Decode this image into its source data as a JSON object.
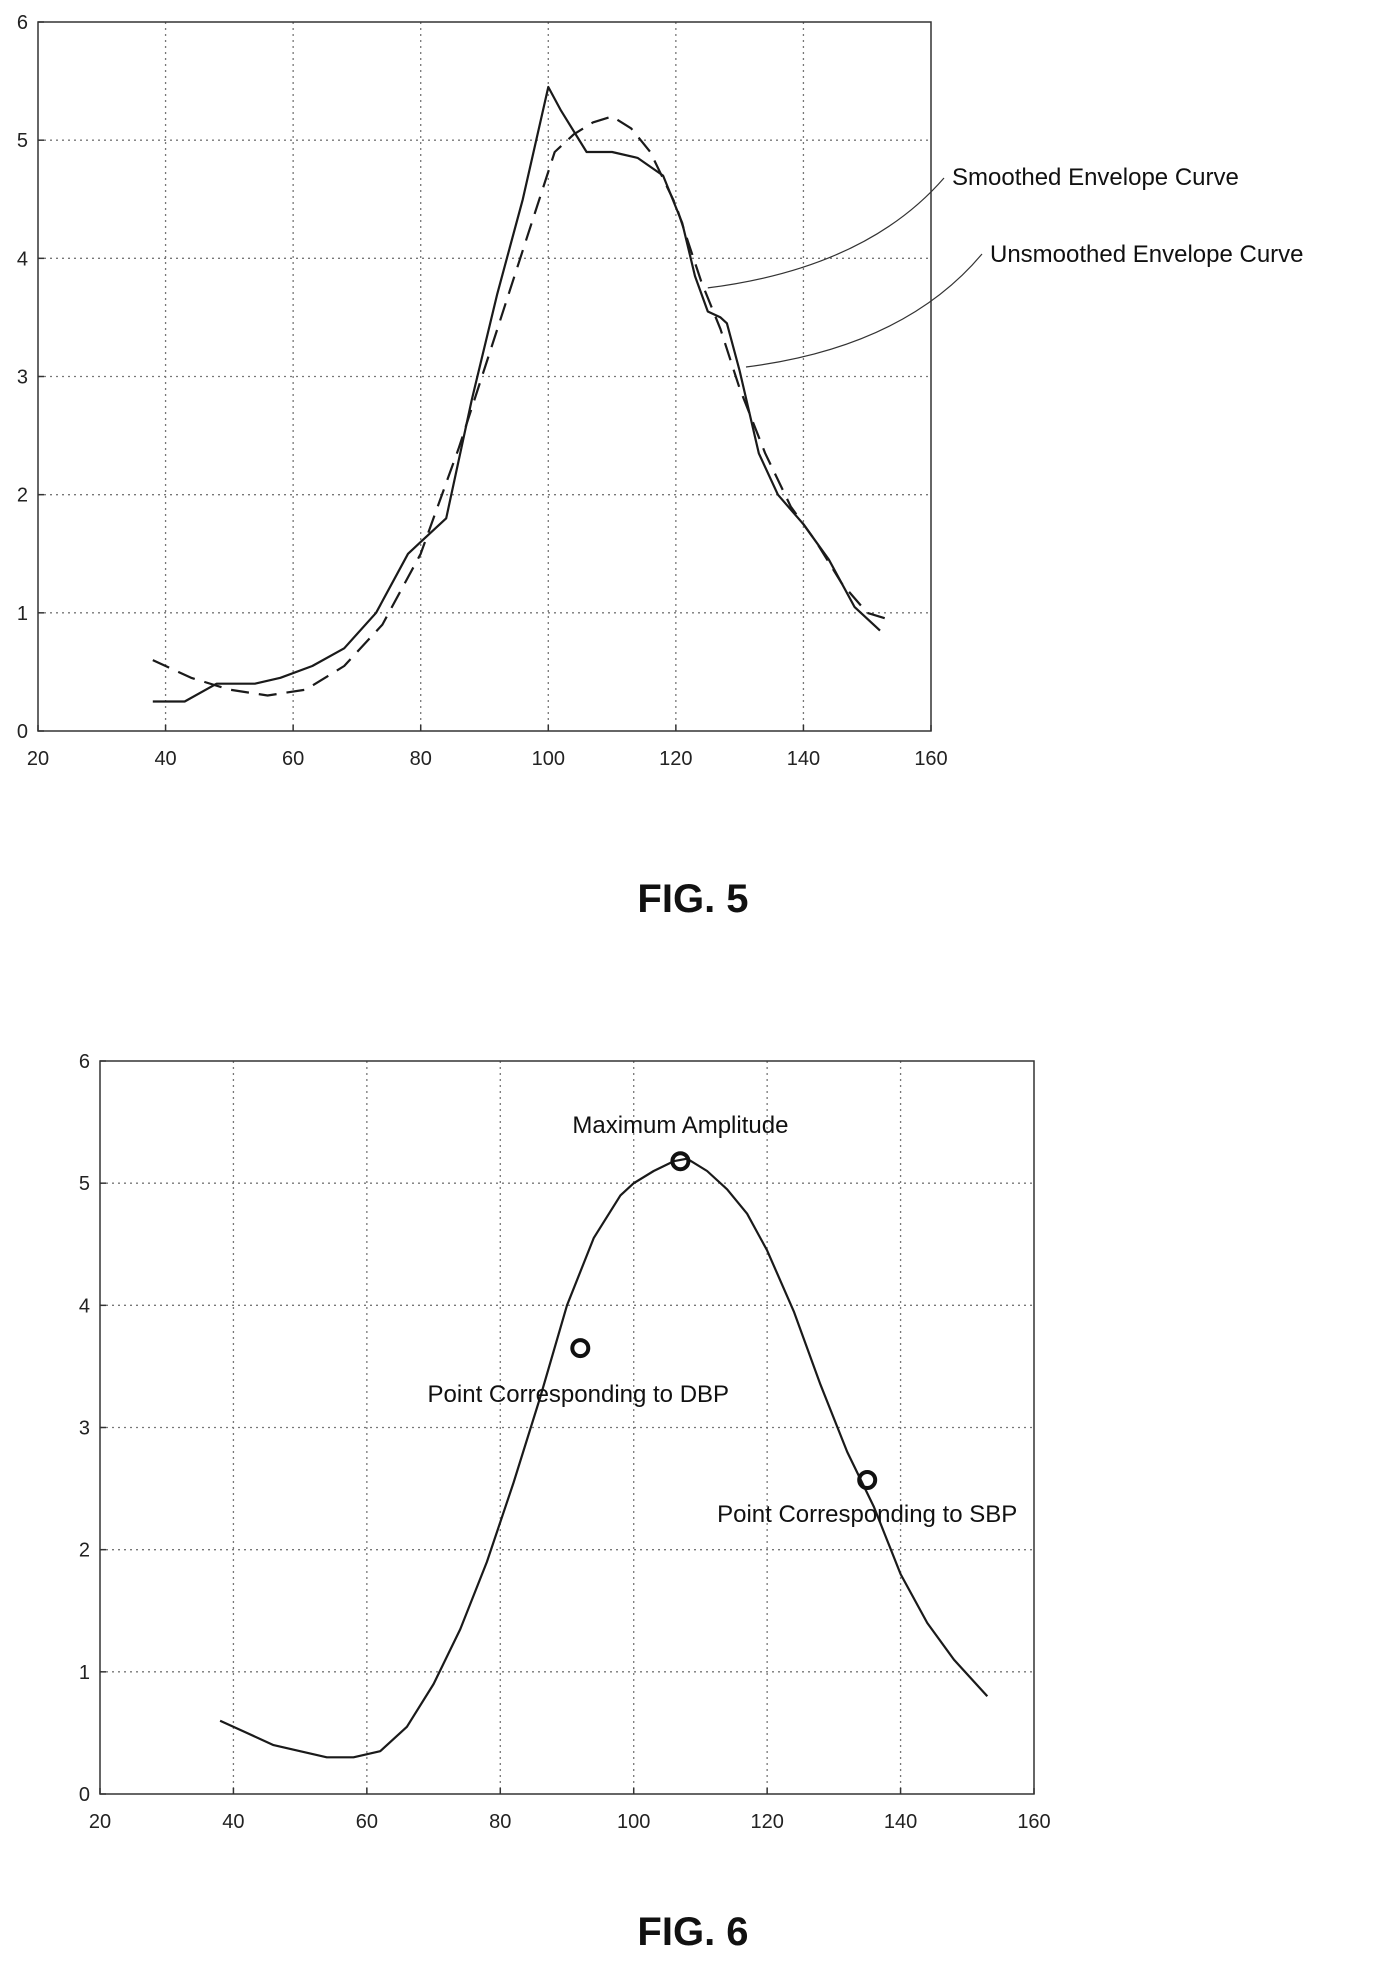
{
  "chart_data": [
    {
      "type": "line",
      "figure_label": "FIG. 5",
      "xlim": [
        20,
        160
      ],
      "ylim": [
        0,
        6
      ],
      "xticks": [
        20,
        40,
        60,
        80,
        100,
        120,
        140,
        160
      ],
      "yticks": [
        0,
        1,
        2,
        3,
        4,
        5,
        6
      ],
      "x_tick_labels": [
        "20",
        "40",
        "60",
        "80",
        "100",
        "120",
        "140",
        "160"
      ],
      "y_tick_labels": [
        "0",
        "1",
        "2",
        "3",
        "4",
        "5",
        "6"
      ],
      "grid": true,
      "series": [
        {
          "name": "Smoothed Envelope Curve",
          "style": "dashed",
          "x": [
            38,
            44,
            50,
            56,
            62,
            68,
            74,
            80,
            86,
            92,
            98,
            101,
            104,
            107,
            110,
            113,
            116,
            120,
            124,
            127,
            130,
            134,
            138,
            142,
            146,
            150,
            153
          ],
          "y": [
            0.6,
            0.45,
            0.35,
            0.3,
            0.35,
            0.55,
            0.9,
            1.5,
            2.4,
            3.4,
            4.4,
            4.9,
            5.05,
            5.15,
            5.2,
            5.1,
            4.9,
            4.45,
            3.8,
            3.4,
            2.9,
            2.35,
            1.9,
            1.6,
            1.25,
            1.0,
            0.95
          ]
        },
        {
          "name": "Unsmoothed Envelope Curve",
          "style": "solid",
          "x": [
            38,
            43,
            48,
            54,
            58,
            63,
            68,
            73,
            78,
            80,
            84,
            88,
            92,
            96,
            100,
            102,
            106,
            110,
            114,
            118,
            121,
            123,
            125,
            127,
            128,
            130,
            133,
            136,
            140,
            144,
            148,
            152
          ],
          "y": [
            0.25,
            0.25,
            0.4,
            0.4,
            0.45,
            0.55,
            0.7,
            1.0,
            1.5,
            1.6,
            1.8,
            2.8,
            3.7,
            4.5,
            5.45,
            5.25,
            4.9,
            4.9,
            4.85,
            4.7,
            4.3,
            3.85,
            3.55,
            3.5,
            3.45,
            3.05,
            2.35,
            2.0,
            1.75,
            1.45,
            1.05,
            0.85
          ]
        }
      ],
      "annotations": [
        {
          "text": "Smoothed Envelope Curve",
          "target_x": 125,
          "target_y": 3.75
        },
        {
          "text": "Unsmoothed Envelope Curve",
          "target_x": 131,
          "target_y": 3.08
        }
      ]
    },
    {
      "type": "line",
      "figure_label": "FIG. 6",
      "xlim": [
        20,
        160
      ],
      "ylim": [
        0,
        6
      ],
      "xticks": [
        20,
        40,
        60,
        80,
        100,
        120,
        140,
        160
      ],
      "yticks": [
        0,
        1,
        2,
        3,
        4,
        5,
        6
      ],
      "x_tick_labels": [
        "20",
        "40",
        "60",
        "80",
        "100",
        "120",
        "140",
        "160"
      ],
      "y_tick_labels": [
        "0",
        "1",
        "2",
        "3",
        "4",
        "5",
        "6"
      ],
      "grid": true,
      "series": [
        {
          "style": "solid",
          "x": [
            38,
            42,
            46,
            50,
            54,
            58,
            62,
            66,
            70,
            74,
            78,
            82,
            86,
            90,
            94,
            98,
            100,
            103,
            106,
            108,
            111,
            114,
            117,
            120,
            124,
            128,
            132,
            136,
            140,
            144,
            148,
            153
          ],
          "y": [
            0.6,
            0.5,
            0.4,
            0.35,
            0.3,
            0.3,
            0.35,
            0.55,
            0.9,
            1.35,
            1.9,
            2.55,
            3.25,
            4.0,
            4.55,
            4.9,
            5.0,
            5.1,
            5.18,
            5.2,
            5.1,
            4.95,
            4.75,
            4.45,
            3.95,
            3.35,
            2.8,
            2.35,
            1.8,
            1.4,
            1.1,
            0.8
          ]
        }
      ],
      "markers": [
        {
          "label": "Maximum Amplitude",
          "x": 107,
          "y": 5.18
        },
        {
          "label": "Point Corresponding to DBP",
          "x": 92,
          "y": 3.65
        },
        {
          "label": "Point Corresponding to SBP",
          "x": 135,
          "y": 2.57
        }
      ]
    }
  ]
}
